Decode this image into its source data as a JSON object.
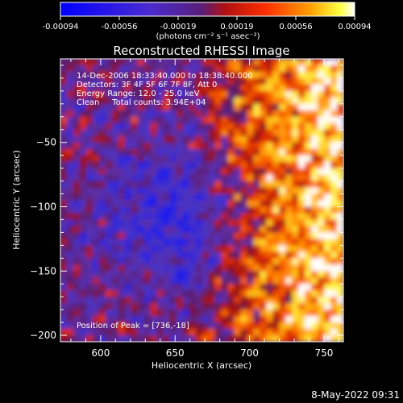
{
  "colorbar": {
    "ticks": [
      "-0.00094",
      "-0.00056",
      "-0.00019",
      "0.00019",
      "0.00056",
      "0.00094"
    ],
    "unit_line": "(photons cm⁻² s⁻¹ asec⁻²)",
    "range": [
      -0.00094,
      0.00094
    ]
  },
  "chart_data": {
    "type": "heatmap",
    "title": "Reconstructed RHESSI Image",
    "xlabel": "Heliocentric X (arcsec)",
    "ylabel": "Heliocentric Y (arcsec)",
    "xlim": [
      573,
      763
    ],
    "ylim": [
      -205,
      15
    ],
    "x_ticks": [
      600,
      650,
      700,
      750
    ],
    "y_ticks": [
      -50,
      -100,
      -150,
      -200
    ],
    "x_tick_labels": [
      "600",
      "650",
      "700",
      "750"
    ],
    "y_tick_labels": [
      "−50",
      "−100",
      "−150",
      "−200"
    ],
    "annotations": [
      "14-Dec-2006 18:33:40.000 to 18:38:40.000",
      "Detectors: 3F 4F 5F 6F 7F 8F, Att 0",
      "Energy Range: 12.0 - 25.0 keV",
      "Clean     Total counts: 3.94E+04"
    ],
    "peak_label": "Position of Peak = [736,-18]",
    "peak": [
      736,
      -18
    ],
    "colormap": "IDL red-temperature: blue (negative) -> purple -> red -> orange -> yellow -> white (positive)"
  },
  "footer": {
    "timestamp": "8-May-2022 09:31"
  },
  "colors": {
    "background": "#000000",
    "text": "#ffffff"
  }
}
